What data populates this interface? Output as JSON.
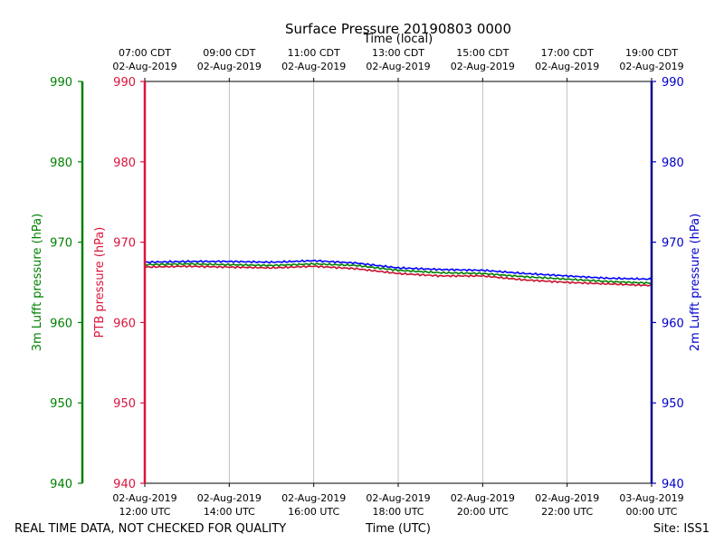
{
  "chart_data": {
    "type": "line",
    "title": "Surface Pressure 20190803 0000",
    "top_xlabel": "Time (local)",
    "bottom_xlabel": "Time (UTC)",
    "x_range_hours": [
      0,
      12
    ],
    "bottom_ticks": [
      {
        "hour": 0,
        "date": "02-Aug-2019",
        "time": "12:00 UTC"
      },
      {
        "hour": 2,
        "date": "02-Aug-2019",
        "time": "14:00 UTC"
      },
      {
        "hour": 4,
        "date": "02-Aug-2019",
        "time": "16:00 UTC"
      },
      {
        "hour": 6,
        "date": "02-Aug-2019",
        "time": "18:00 UTC"
      },
      {
        "hour": 8,
        "date": "02-Aug-2019",
        "time": "20:00 UTC"
      },
      {
        "hour": 10,
        "date": "02-Aug-2019",
        "time": "22:00 UTC"
      },
      {
        "hour": 12,
        "date": "03-Aug-2019",
        "time": "00:00 UTC"
      }
    ],
    "top_ticks": [
      {
        "hour": 0,
        "time": "07:00 CDT",
        "date": "02-Aug-2019"
      },
      {
        "hour": 2,
        "time": "09:00 CDT",
        "date": "02-Aug-2019"
      },
      {
        "hour": 4,
        "time": "11:00 CDT",
        "date": "02-Aug-2019"
      },
      {
        "hour": 6,
        "time": "13:00 CDT",
        "date": "02-Aug-2019"
      },
      {
        "hour": 8,
        "time": "15:00 CDT",
        "date": "02-Aug-2019"
      },
      {
        "hour": 10,
        "time": "17:00 CDT",
        "date": "02-Aug-2019"
      },
      {
        "hour": 12,
        "time": "19:00 CDT",
        "date": "02-Aug-2019"
      }
    ],
    "y_axes": [
      {
        "id": "lufft3m",
        "label": "3m Lufft pressure (hPa)",
        "color": "#008000",
        "ylim": [
          940,
          990
        ],
        "ticks": [
          940,
          950,
          960,
          970,
          980,
          990
        ]
      },
      {
        "id": "ptb",
        "label": "PTB pressure (hPa)",
        "color": "#dc143c",
        "ylim": [
          940,
          990
        ],
        "ticks": [
          940,
          950,
          960,
          970,
          980,
          990
        ]
      },
      {
        "id": "lufft2m",
        "label": "2m Lufft pressure (hPa)",
        "color": "#0000cd",
        "ylim": [
          940,
          990
        ],
        "ticks": [
          940,
          950,
          960,
          970,
          980,
          990
        ]
      }
    ],
    "series": [
      {
        "name": "2m Lufft pressure",
        "axis": "lufft2m",
        "color": "#0000ff",
        "x": [
          0,
          1,
          2,
          3,
          4,
          5,
          6,
          7,
          8,
          9,
          10,
          11,
          12
        ],
        "values": [
          967.5,
          967.6,
          967.6,
          967.5,
          967.7,
          967.4,
          966.8,
          966.6,
          966.5,
          966.1,
          965.8,
          965.5,
          965.4
        ]
      },
      {
        "name": "3m Lufft pressure",
        "axis": "lufft3m",
        "color": "#008000",
        "x": [
          0,
          1,
          2,
          3,
          4,
          5,
          6,
          7,
          8,
          9,
          10,
          11,
          12
        ],
        "values": [
          967.2,
          967.3,
          967.2,
          967.1,
          967.3,
          967.1,
          966.5,
          966.2,
          966.1,
          965.7,
          965.4,
          965.1,
          964.9
        ]
      },
      {
        "name": "PTB pressure",
        "axis": "ptb",
        "color": "#c8102e",
        "x": [
          0,
          1,
          2,
          3,
          4,
          5,
          6,
          7,
          8,
          9,
          10,
          11,
          12
        ],
        "values": [
          966.9,
          967.0,
          966.9,
          966.8,
          967.0,
          966.7,
          966.1,
          965.8,
          965.8,
          965.3,
          965.0,
          964.8,
          964.6
        ]
      }
    ]
  },
  "footer": {
    "left_note": "REAL TIME DATA, NOT CHECKED FOR QUALITY",
    "site": "Site: ISS1"
  }
}
